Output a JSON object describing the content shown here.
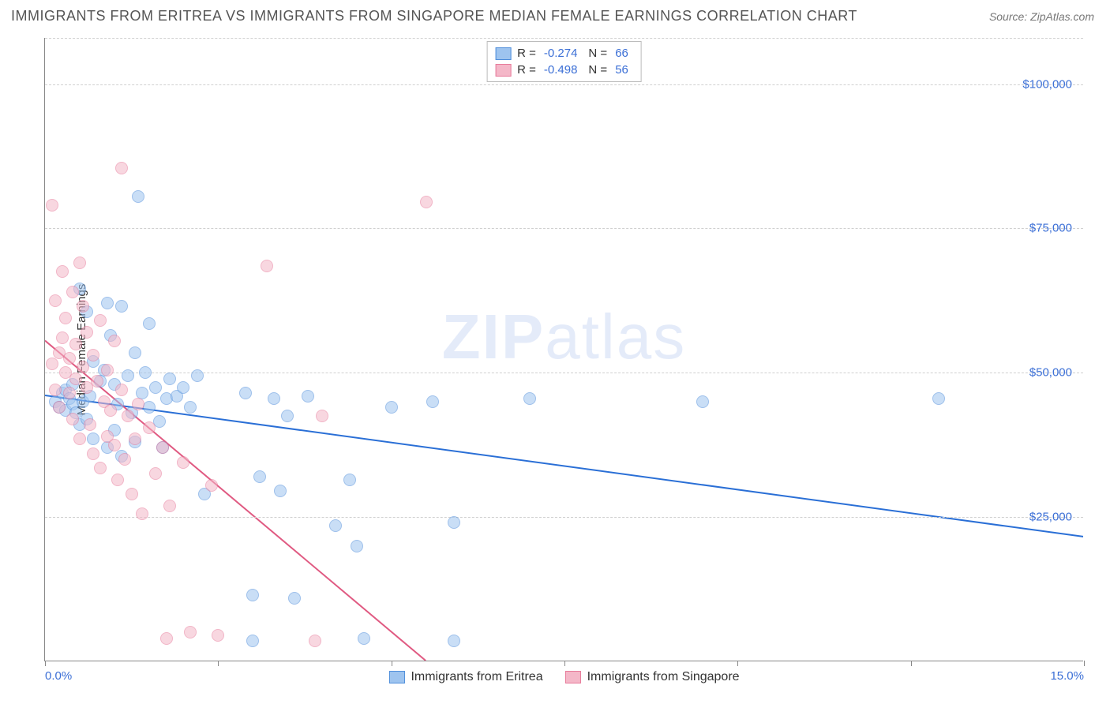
{
  "title": "IMMIGRANTS FROM ERITREA VS IMMIGRANTS FROM SINGAPORE MEDIAN FEMALE EARNINGS CORRELATION CHART",
  "source": "Source: ZipAtlas.com",
  "ylabel": "Median Female Earnings",
  "watermark_a": "ZIP",
  "watermark_b": "atlas",
  "chart": {
    "type": "scatter-with-trend",
    "background_color": "#ffffff",
    "grid_color": "#d0d0d0",
    "axis_color": "#888888",
    "tick_label_color": "#3b6fd6",
    "xlim": [
      0,
      15
    ],
    "ylim": [
      0,
      108000
    ],
    "x_ticks": [
      0,
      2.5,
      5,
      7.5,
      10,
      12.5,
      15
    ],
    "x_tick_labels": {
      "0": "0.0%",
      "15": "15.0%"
    },
    "y_ticks": [
      25000,
      50000,
      75000,
      100000
    ],
    "y_tick_labels": [
      "$25,000",
      "$50,000",
      "$75,000",
      "$100,000"
    ],
    "marker_radius": 8,
    "marker_opacity": 0.55,
    "series": [
      {
        "key": "eritrea",
        "label": "Immigrants from Eritrea",
        "fill": "#9ec4ef",
        "stroke": "#4f8edb",
        "r_value": "-0.274",
        "n_value": "66",
        "trend": {
          "x1": 0,
          "y1": 46000,
          "x2": 15,
          "y2": 21500,
          "color": "#2a6fd6",
          "width": 2
        },
        "points": [
          [
            0.15,
            45000
          ],
          [
            0.2,
            44000
          ],
          [
            0.25,
            46500
          ],
          [
            0.3,
            47000
          ],
          [
            0.3,
            43500
          ],
          [
            0.35,
            45500
          ],
          [
            0.4,
            44500
          ],
          [
            0.4,
            48000
          ],
          [
            0.45,
            43000
          ],
          [
            0.5,
            41000
          ],
          [
            0.5,
            64500
          ],
          [
            0.55,
            45000
          ],
          [
            0.6,
            60500
          ],
          [
            0.6,
            42000
          ],
          [
            0.65,
            46000
          ],
          [
            0.7,
            52000
          ],
          [
            0.7,
            38500
          ],
          [
            0.8,
            48500
          ],
          [
            0.85,
            50500
          ],
          [
            0.9,
            62000
          ],
          [
            0.9,
            37000
          ],
          [
            0.95,
            56500
          ],
          [
            1.0,
            48000
          ],
          [
            1.0,
            40000
          ],
          [
            1.05,
            44500
          ],
          [
            1.1,
            61500
          ],
          [
            1.1,
            35500
          ],
          [
            1.2,
            49500
          ],
          [
            1.25,
            43000
          ],
          [
            1.3,
            53500
          ],
          [
            1.3,
            38000
          ],
          [
            1.35,
            80500
          ],
          [
            1.4,
            46500
          ],
          [
            1.45,
            50000
          ],
          [
            1.5,
            44000
          ],
          [
            1.5,
            58500
          ],
          [
            1.6,
            47500
          ],
          [
            1.65,
            41500
          ],
          [
            1.7,
            37000
          ],
          [
            1.75,
            45500
          ],
          [
            1.8,
            49000
          ],
          [
            1.9,
            46000
          ],
          [
            2.0,
            47500
          ],
          [
            2.1,
            44000
          ],
          [
            2.2,
            49500
          ],
          [
            2.3,
            29000
          ],
          [
            2.9,
            46500
          ],
          [
            3.0,
            3500
          ],
          [
            3.0,
            11500
          ],
          [
            3.1,
            32000
          ],
          [
            3.3,
            45500
          ],
          [
            3.4,
            29500
          ],
          [
            3.5,
            42500
          ],
          [
            3.6,
            11000
          ],
          [
            3.8,
            46000
          ],
          [
            4.2,
            23500
          ],
          [
            4.4,
            31500
          ],
          [
            4.5,
            20000
          ],
          [
            4.6,
            4000
          ],
          [
            5.0,
            44000
          ],
          [
            5.6,
            45000
          ],
          [
            5.9,
            3500
          ],
          [
            5.9,
            24000
          ],
          [
            7.0,
            45500
          ],
          [
            9.5,
            45000
          ],
          [
            12.9,
            45500
          ]
        ]
      },
      {
        "key": "singapore",
        "label": "Immigrants from Singapore",
        "fill": "#f4b7c8",
        "stroke": "#e77a9a",
        "r_value": "-0.498",
        "n_value": "56",
        "trend": {
          "x1": 0,
          "y1": 55500,
          "x2": 5.5,
          "y2": 0,
          "color": "#e05a82",
          "width": 2
        },
        "points": [
          [
            0.1,
            51500
          ],
          [
            0.1,
            79000
          ],
          [
            0.15,
            47000
          ],
          [
            0.15,
            62500
          ],
          [
            0.2,
            53500
          ],
          [
            0.2,
            44000
          ],
          [
            0.25,
            56000
          ],
          [
            0.25,
            67500
          ],
          [
            0.3,
            50000
          ],
          [
            0.3,
            59500
          ],
          [
            0.35,
            52500
          ],
          [
            0.35,
            46500
          ],
          [
            0.4,
            64000
          ],
          [
            0.4,
            42000
          ],
          [
            0.45,
            55000
          ],
          [
            0.45,
            49000
          ],
          [
            0.5,
            69000
          ],
          [
            0.5,
            38500
          ],
          [
            0.55,
            51000
          ],
          [
            0.55,
            61500
          ],
          [
            0.6,
            47500
          ],
          [
            0.6,
            57000
          ],
          [
            0.65,
            41000
          ],
          [
            0.7,
            53000
          ],
          [
            0.7,
            36000
          ],
          [
            0.75,
            48500
          ],
          [
            0.8,
            59000
          ],
          [
            0.8,
            33500
          ],
          [
            0.85,
            45000
          ],
          [
            0.9,
            50500
          ],
          [
            0.9,
            39000
          ],
          [
            0.95,
            43500
          ],
          [
            1.0,
            37500
          ],
          [
            1.0,
            55500
          ],
          [
            1.05,
            31500
          ],
          [
            1.1,
            47000
          ],
          [
            1.1,
            85500
          ],
          [
            1.15,
            35000
          ],
          [
            1.2,
            42500
          ],
          [
            1.25,
            29000
          ],
          [
            1.3,
            38500
          ],
          [
            1.35,
            44500
          ],
          [
            1.4,
            25500
          ],
          [
            1.5,
            40500
          ],
          [
            1.6,
            32500
          ],
          [
            1.7,
            37000
          ],
          [
            1.75,
            4000
          ],
          [
            1.8,
            27000
          ],
          [
            2.0,
            34500
          ],
          [
            2.1,
            5000
          ],
          [
            2.4,
            30500
          ],
          [
            2.5,
            4500
          ],
          [
            3.2,
            68500
          ],
          [
            3.9,
            3500
          ],
          [
            4.0,
            42500
          ],
          [
            5.5,
            79500
          ]
        ]
      }
    ],
    "legend_top": {
      "r_label": "R =",
      "n_label": "N ="
    }
  }
}
